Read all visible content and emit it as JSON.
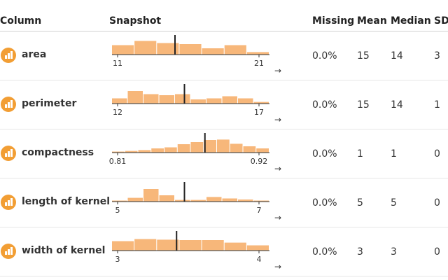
{
  "columns": [
    "Column",
    "Snapshot",
    "Missing",
    "Mean",
    "Median",
    "SD"
  ],
  "bar_color": "#f7b77a",
  "icon_color": "#f29e34",
  "rows": [
    {
      "name": "area",
      "min_label": "11",
      "max_label": "21",
      "missing": "0.0%",
      "mean": "15",
      "median": "14",
      "sd": "3",
      "hist": [
        0.45,
        0.65,
        0.55,
        0.5,
        0.3,
        0.45,
        0.12
      ],
      "marker": 0.4
    },
    {
      "name": "perimeter",
      "min_label": "12",
      "max_label": "17",
      "missing": "0.0%",
      "mean": "15",
      "median": "14",
      "sd": "1",
      "hist": [
        0.25,
        0.6,
        0.45,
        0.4,
        0.45,
        0.2,
        0.25,
        0.35,
        0.25,
        0.08
      ],
      "marker": 0.46
    },
    {
      "name": "compactness",
      "min_label": "0.81",
      "max_label": "0.92",
      "missing": "0.0%",
      "mean": "1",
      "median": "1",
      "sd": "0",
      "hist": [
        0.05,
        0.08,
        0.12,
        0.2,
        0.25,
        0.4,
        0.5,
        0.6,
        0.62,
        0.42,
        0.3,
        0.2
      ],
      "marker": 0.59
    },
    {
      "name": "length of kernel",
      "min_label": "5",
      "max_label": "7",
      "missing": "0.0%",
      "mean": "5",
      "median": "5",
      "sd": "0",
      "hist": [
        0.05,
        0.18,
        0.6,
        0.3,
        0.08,
        0.08,
        0.22,
        0.15,
        0.1,
        0.05
      ],
      "marker": 0.46
    },
    {
      "name": "width of kernel",
      "min_label": "3",
      "max_label": "4",
      "missing": "0.0%",
      "mean": "3",
      "median": "3",
      "sd": "0",
      "hist": [
        0.45,
        0.55,
        0.52,
        0.5,
        0.5,
        0.38,
        0.25
      ],
      "marker": 0.41
    }
  ]
}
